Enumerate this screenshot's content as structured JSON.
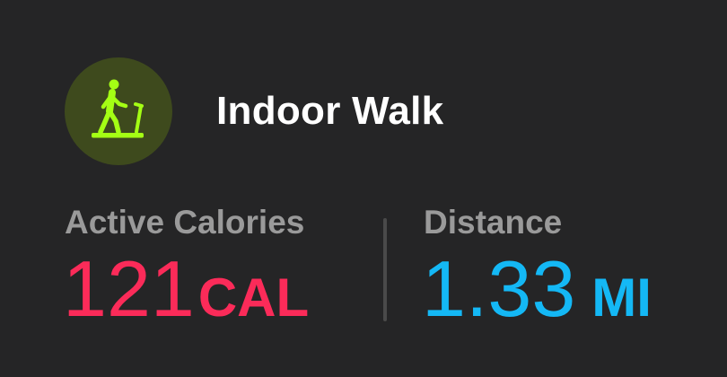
{
  "workout": {
    "icon": "treadmill-walk-icon",
    "title": "Indoor Walk"
  },
  "metrics": {
    "calories": {
      "label": "Active Calories",
      "value": "121",
      "unit": "CAL",
      "color": "#fb2b59"
    },
    "distance": {
      "label": "Distance",
      "value": "1.33",
      "unit": "MI",
      "color": "#14b8f5"
    }
  },
  "colors": {
    "background": "#252526",
    "icon_circle": "#3e4a1d",
    "icon_glyph": "#a4ff14",
    "label": "#9a9a9a",
    "divider": "#4a4a4a"
  }
}
